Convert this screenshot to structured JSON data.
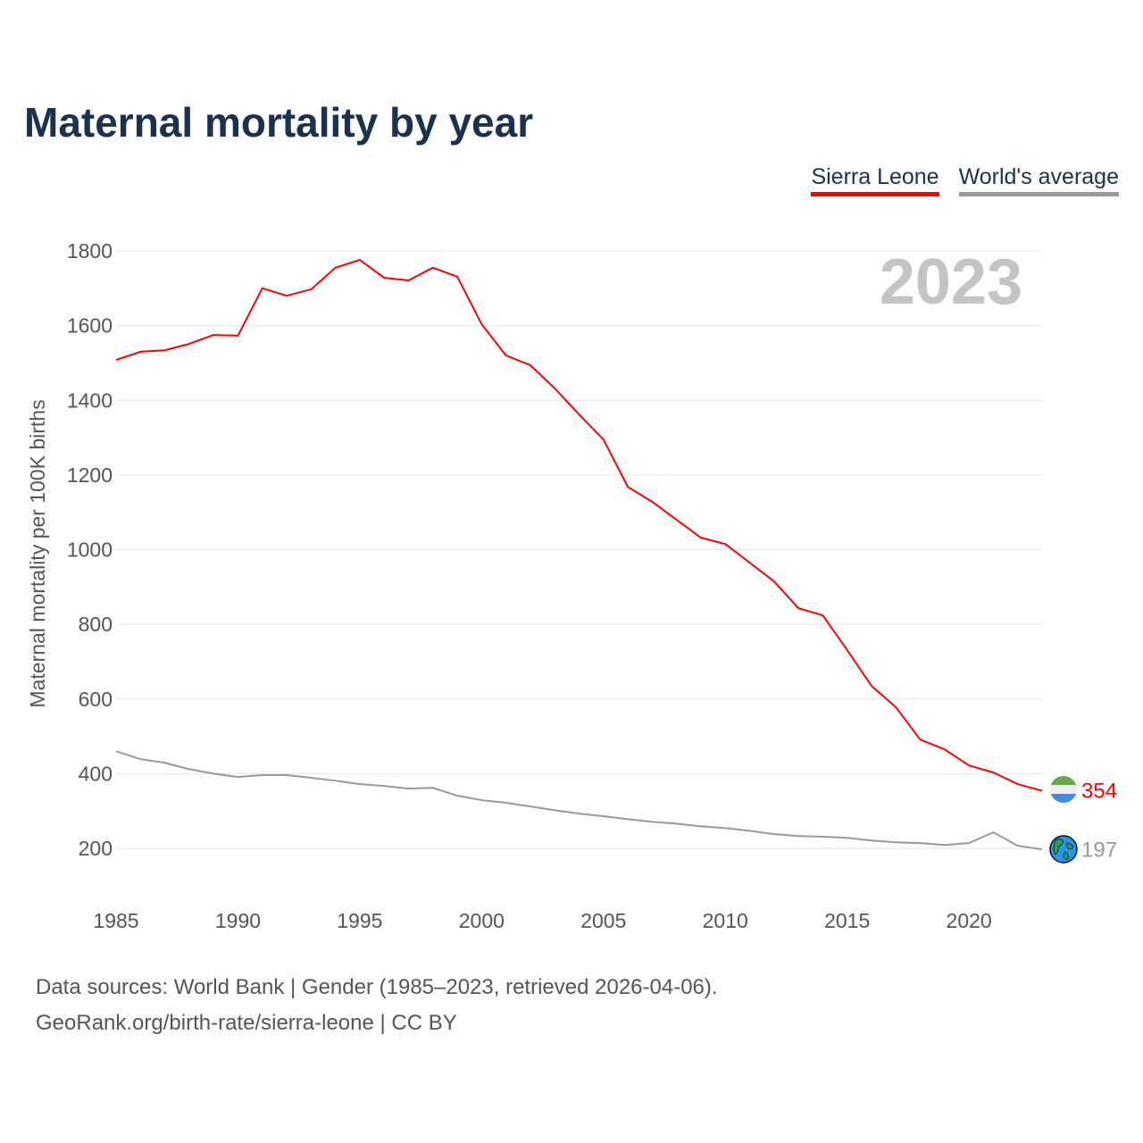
{
  "title": "Maternal mortality by year",
  "legend": [
    {
      "label": "Sierra Leone",
      "color": "#ff0000"
    },
    {
      "label": "World's average",
      "color": "#999999"
    }
  ],
  "year_watermark": "2023",
  "footer": {
    "line1": "Data sources: World Bank | Gender (1985–2023, retrieved 2026-04-06).",
    "line2": "GeoRank.org/birth-rate/sierra-leone | CC BY"
  },
  "chart_data": {
    "type": "line",
    "title": "Maternal mortality by year",
    "xlabel": "",
    "ylabel": "Maternal mortality per 100K births",
    "xlim": [
      1985,
      2023
    ],
    "ylim": [
      200,
      1800
    ],
    "x_ticks": [
      1985,
      1990,
      1995,
      2000,
      2005,
      2010,
      2015,
      2020
    ],
    "y_ticks": [
      200,
      400,
      600,
      800,
      1000,
      1200,
      1400,
      1600,
      1800
    ],
    "grid": true,
    "legend_position": "top-right",
    "x": [
      1985,
      1986,
      1987,
      1988,
      1989,
      1990,
      1991,
      1992,
      1993,
      1994,
      1995,
      1996,
      1997,
      1998,
      1999,
      2000,
      2001,
      2002,
      2003,
      2004,
      2005,
      2006,
      2007,
      2008,
      2009,
      2010,
      2011,
      2012,
      2013,
      2014,
      2015,
      2016,
      2017,
      2018,
      2019,
      2020,
      2021,
      2022,
      2023
    ],
    "series": [
      {
        "name": "Sierra Leone",
        "color": "#ff0000",
        "end_label": "354",
        "values": [
          1508,
          1530,
          1534,
          1551,
          1575,
          1573,
          1700,
          1680,
          1697,
          1755,
          1776,
          1728,
          1721,
          1755,
          1731,
          1604,
          1520,
          1494,
          1432,
          1362,
          1295,
          1168,
          1128,
          1080,
          1032,
          1015,
          965,
          915,
          843,
          824,
          731,
          635,
          578,
          491,
          465,
          422,
          403,
          372,
          354
        ]
      },
      {
        "name": "World's average",
        "color": "#999999",
        "end_label": "197",
        "values": [
          460,
          439,
          429,
          412,
          400,
          391,
          396,
          396,
          389,
          381,
          372,
          367,
          360,
          362,
          341,
          329,
          322,
          312,
          302,
          293,
          286,
          278,
          271,
          266,
          259,
          254,
          247,
          238,
          233,
          231,
          228,
          221,
          216,
          214,
          209,
          214,
          243,
          207,
          197
        ]
      }
    ]
  }
}
